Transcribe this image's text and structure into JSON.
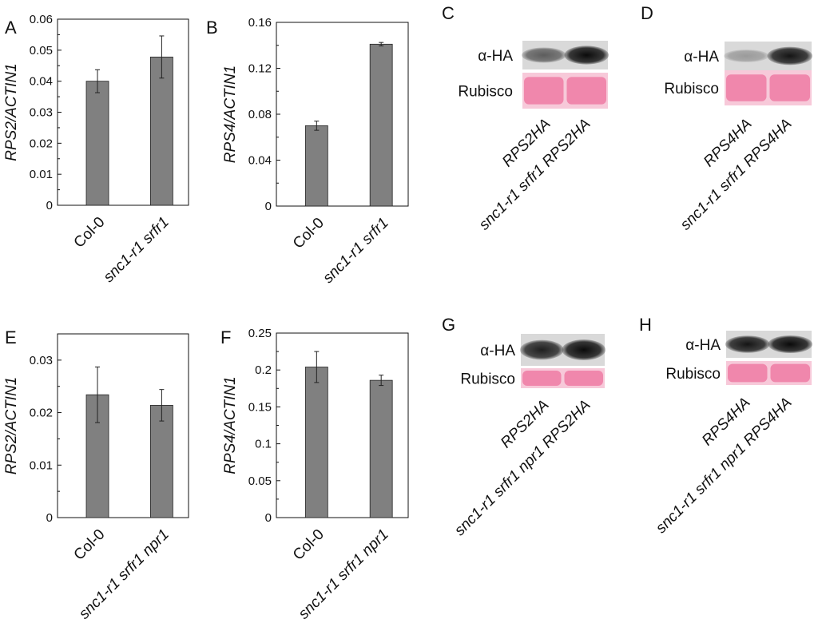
{
  "chart_data": [
    {
      "panel": "A",
      "type": "bar",
      "ylabel": "RPS2/ACTIN1",
      "categories": [
        "Col-0",
        "snc1-r1 srfr1"
      ],
      "values": [
        0.04,
        0.0478
      ],
      "errors": [
        0.0037,
        0.0068
      ],
      "ylim": [
        0,
        0.06
      ],
      "ticks": [
        "0",
        "0.01",
        "0.02",
        "0.03",
        "0.04",
        "0.05",
        "0.06"
      ]
    },
    {
      "panel": "B",
      "type": "bar",
      "ylabel": "RPS4/ACTIN1",
      "categories": [
        "Col-0",
        "snc1-r1 srfr1"
      ],
      "values": [
        0.07,
        0.141
      ],
      "errors": [
        0.004,
        0.0015
      ],
      "ylim": [
        0,
        0.16
      ],
      "ticks": [
        "0",
        "0.04",
        "0.08",
        "0.12",
        "0.16"
      ]
    },
    {
      "panel": "E",
      "type": "bar",
      "ylabel": "RPS2/ACTIN1",
      "categories": [
        "Col-0",
        "snc1-r1 srfr1 npr1"
      ],
      "values": [
        0.0234,
        0.0214
      ],
      "errors": [
        0.0053,
        0.003
      ],
      "ylim": [
        0,
        0.035
      ],
      "ticks": [
        "0",
        "0.01",
        "0.02",
        "0.03"
      ]
    },
    {
      "panel": "F",
      "type": "bar",
      "ylabel": "RPS4/ACTIN1",
      "categories": [
        "Col-0",
        "snc1-r1 srfr1 npr1"
      ],
      "values": [
        0.204,
        0.186
      ],
      "errors": [
        0.021,
        0.007
      ],
      "ylim": [
        0,
        0.25
      ],
      "ticks": [
        "0",
        "0.05",
        "0.1",
        "0.15",
        "0.2",
        "0.25"
      ]
    }
  ],
  "blots": [
    {
      "panel": "C",
      "labels": [
        "α-HA",
        "Rubisco"
      ],
      "lanes": [
        "RPS2HA",
        "snc1-r1 srfr1 RPS2HA"
      ],
      "ha_intensity": [
        0.6,
        1.0
      ]
    },
    {
      "panel": "D",
      "labels": [
        "α-HA",
        "Rubisco"
      ],
      "lanes": [
        "RPS4HA",
        "snc1-r1 srfr1 RPS4HA"
      ],
      "ha_intensity": [
        0.3,
        0.95
      ]
    },
    {
      "panel": "G",
      "labels": [
        "α-HA",
        "Rubisco"
      ],
      "lanes": [
        "RPS2HA",
        "snc1-r1 srfr1 npr1 RPS2HA"
      ],
      "ha_intensity": [
        0.9,
        1.0
      ]
    },
    {
      "panel": "H",
      "labels": [
        "α-HA",
        "Rubisco"
      ],
      "lanes": [
        "RPS4HA",
        "snc1-r1 srfr1 npr1 RPS4HA"
      ],
      "ha_intensity": [
        0.95,
        1.0
      ]
    }
  ],
  "colors": {
    "bar": "#808080",
    "rubisco": "#ee7fa6",
    "blot_bg": "#d9d9d9"
  }
}
